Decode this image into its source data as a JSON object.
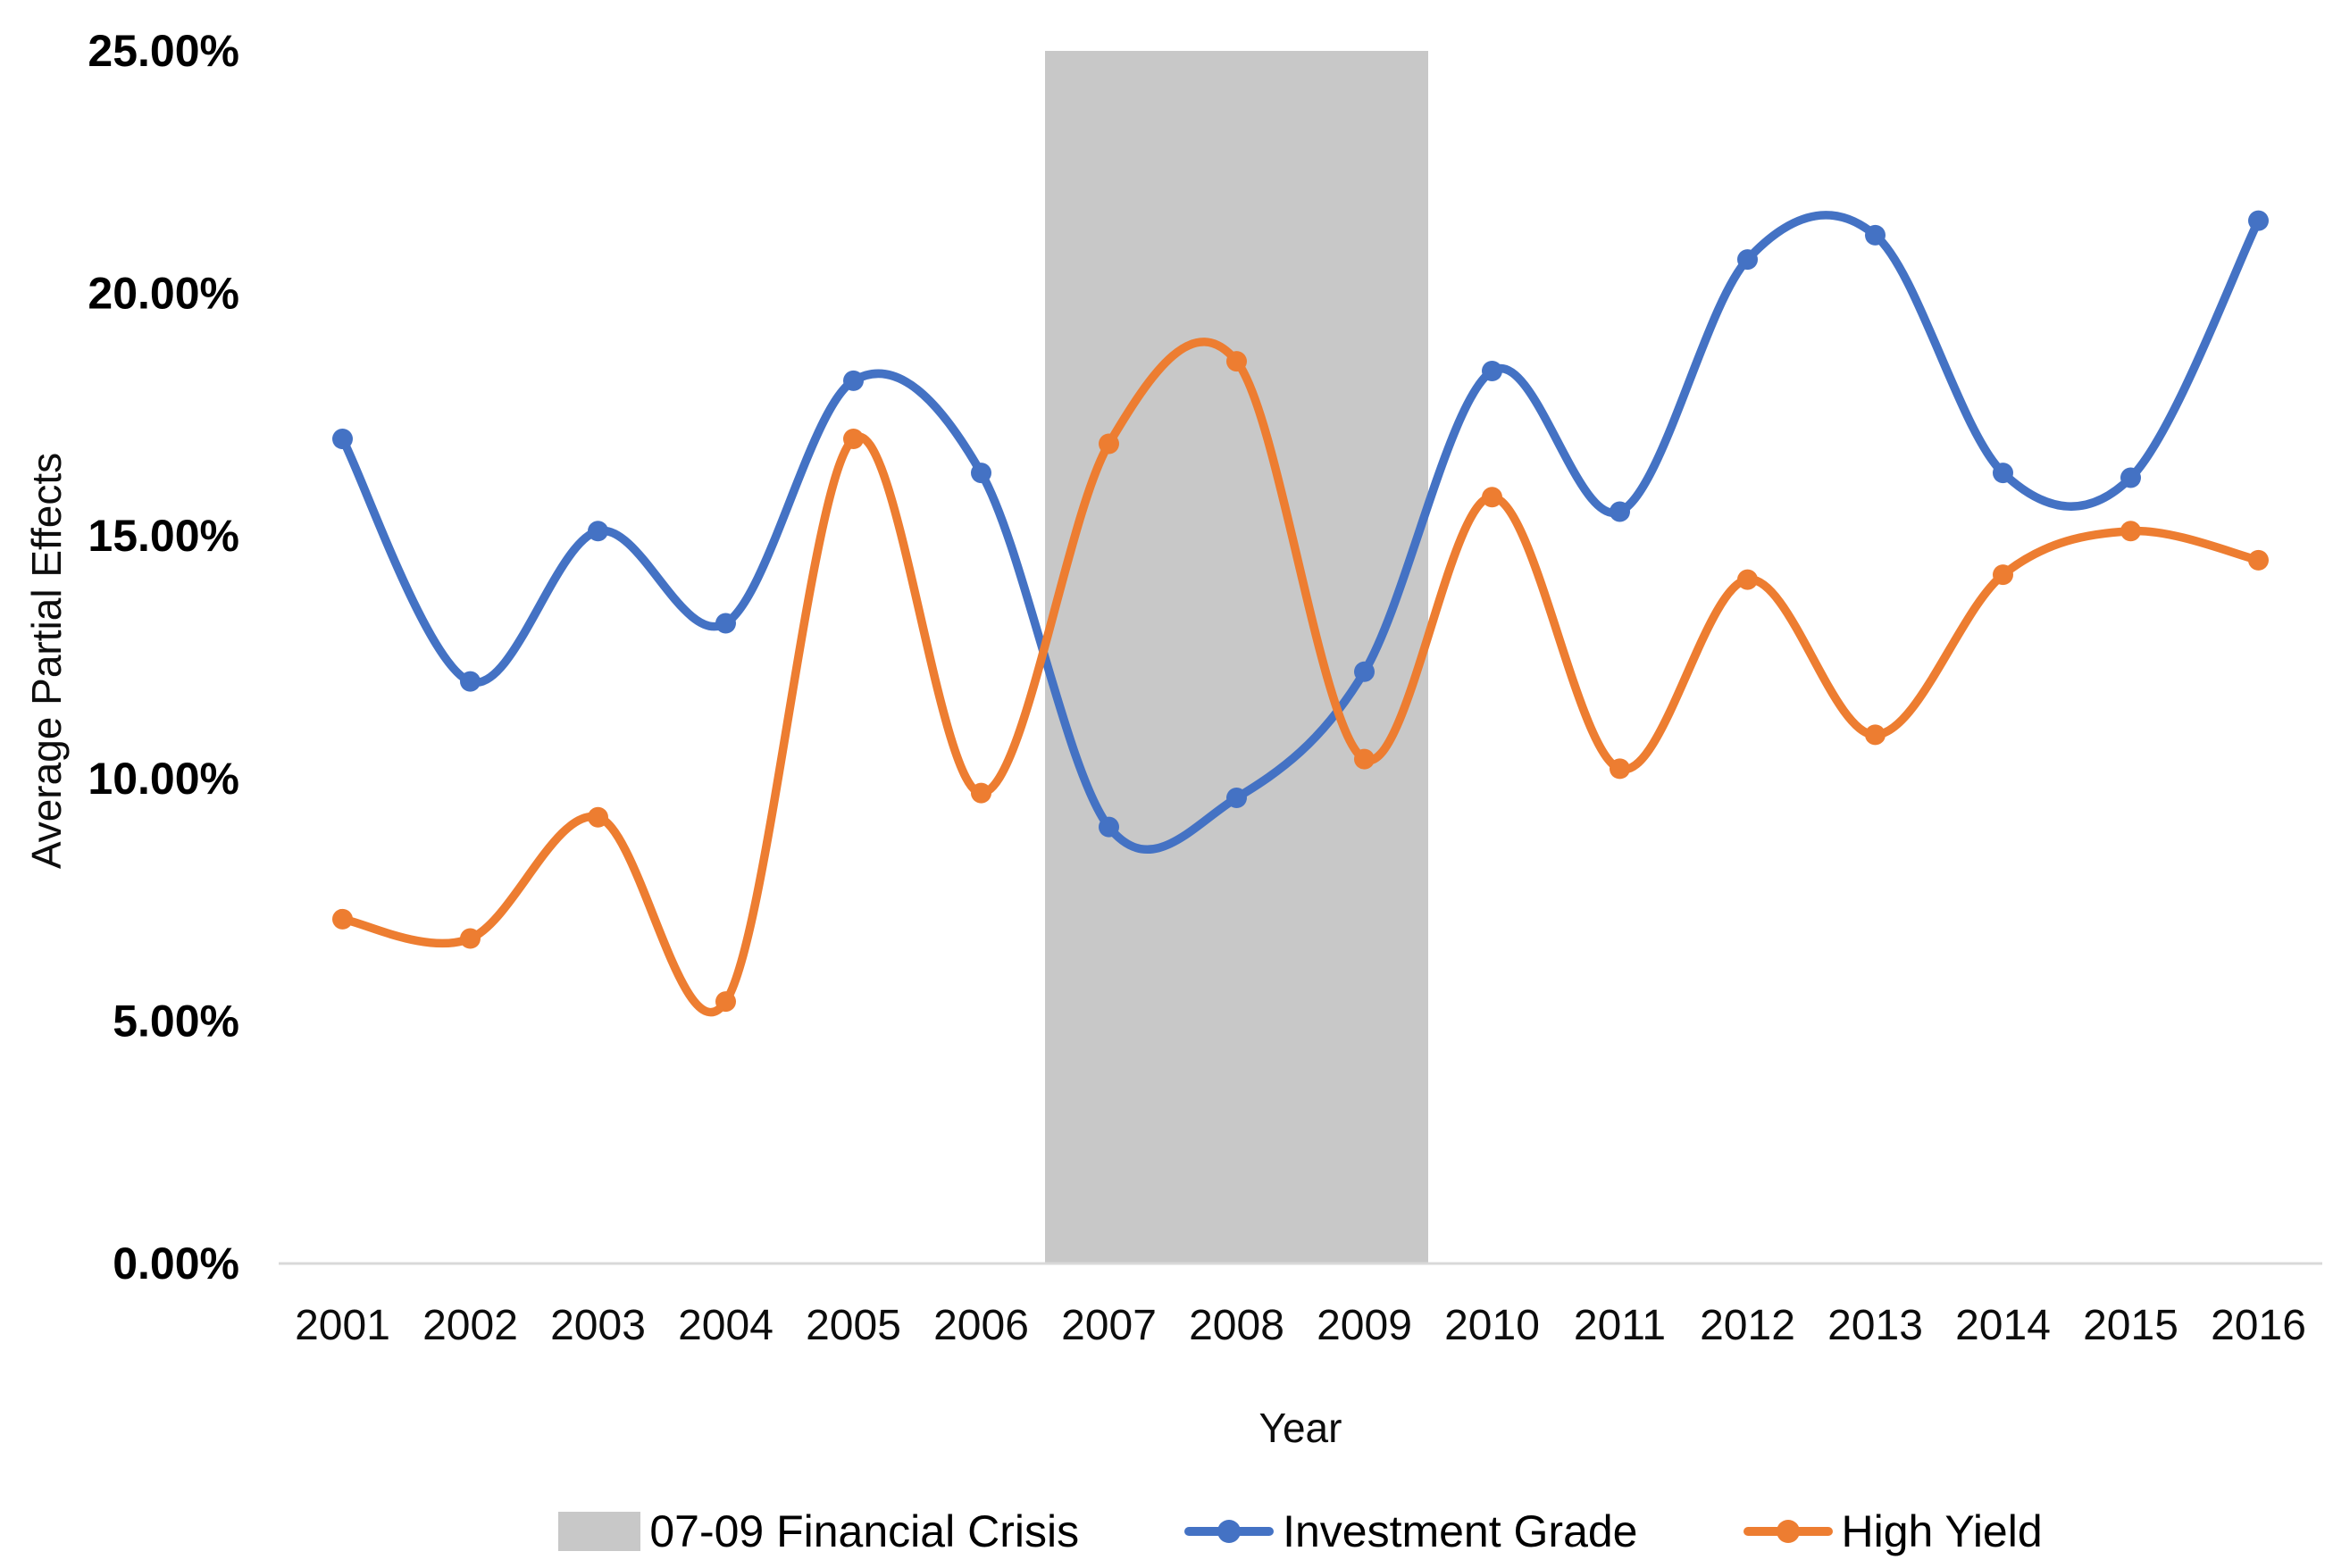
{
  "chart_data": {
    "type": "line",
    "title": "",
    "xlabel": "Year",
    "ylabel": "Average Partial Effects",
    "categories": [
      "2001",
      "2002",
      "2003",
      "2004",
      "2005",
      "2006",
      "2007",
      "2008",
      "2009",
      "2010",
      "2011",
      "2012",
      "2013",
      "2014",
      "2015",
      "2016"
    ],
    "series": [
      {
        "name": "Investment Grade",
        "color": "#4472C4",
        "values": [
          17.0,
          12.0,
          15.1,
          13.2,
          18.2,
          16.3,
          9.0,
          9.6,
          12.2,
          18.4,
          15.5,
          20.7,
          21.2,
          16.3,
          16.2,
          21.5
        ]
      },
      {
        "name": "High Yield",
        "color": "#ED7D31",
        "values": [
          7.1,
          6.7,
          9.2,
          5.4,
          17.0,
          9.7,
          16.9,
          18.6,
          10.4,
          15.8,
          10.2,
          14.1,
          10.9,
          14.2,
          15.1,
          14.5
        ]
      }
    ],
    "band": {
      "label": "07-09 Financial Crisis",
      "from_year": 2006.5,
      "to_year": 2009.5,
      "color": "#C8C8C8"
    },
    "ylim": [
      0,
      25
    ],
    "ytick_step": 5,
    "ytick_suffix": "%",
    "ytick_decimals": 2,
    "grid": false,
    "legend_position": "bottom",
    "smooth": true,
    "axis_line_color": "#D9D9D9"
  }
}
